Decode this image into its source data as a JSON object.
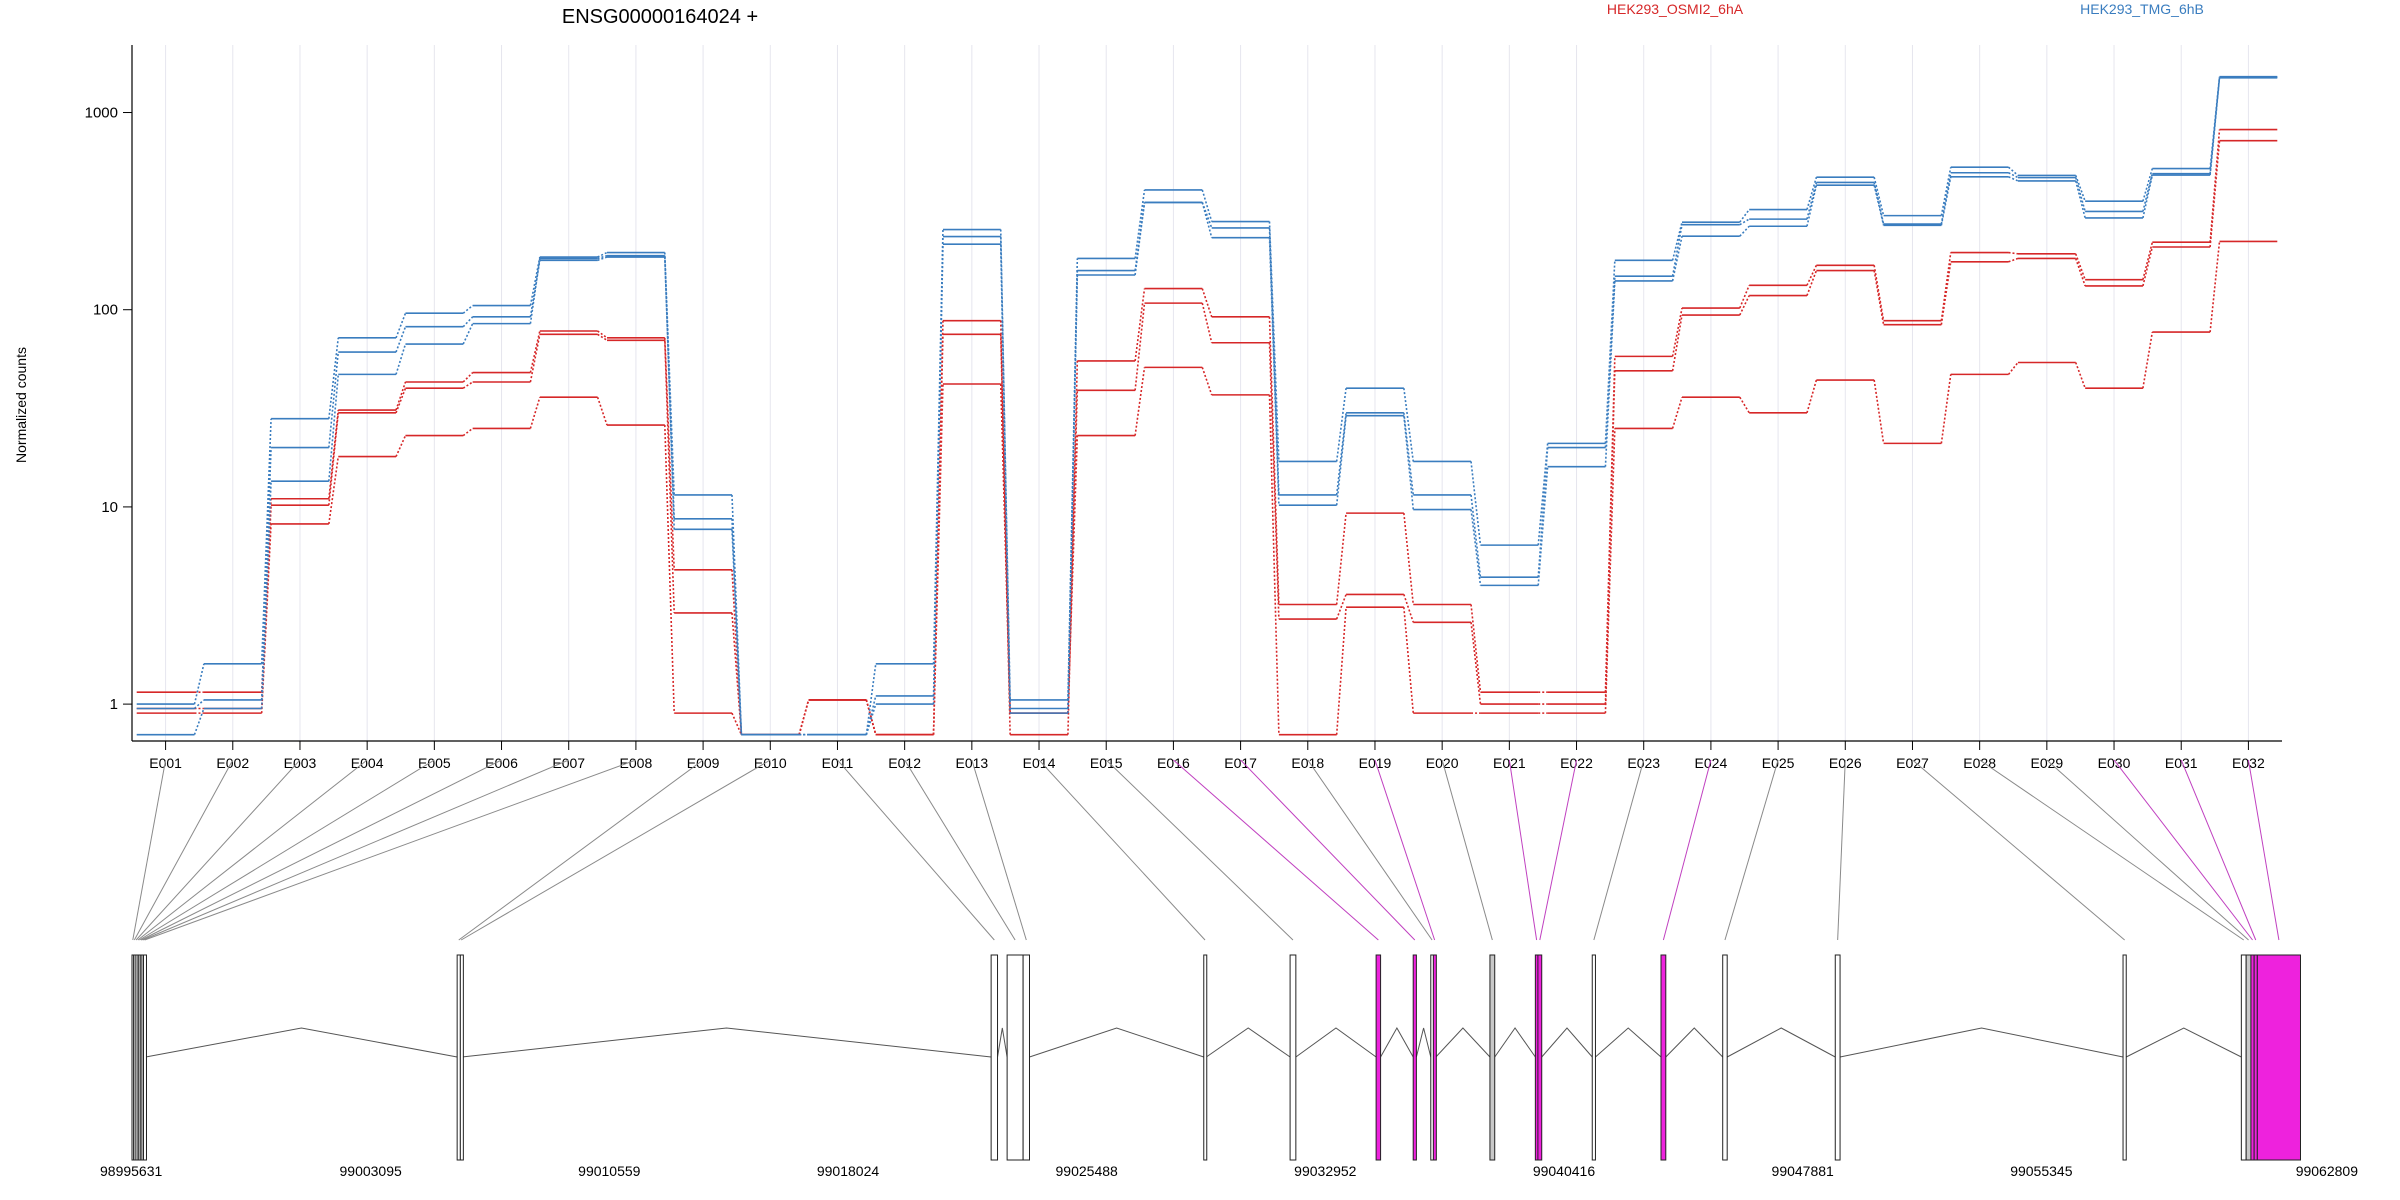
{
  "title": "ENSG00000164024 +",
  "legend": [
    {
      "label": "HEK293_OSMI2_6hA",
      "color": "#d62728"
    },
    {
      "label": "HEK293_TMG_6hB",
      "color": "#3a7dbf"
    }
  ],
  "colors": {
    "red": "#d62728",
    "blue": "#3a7dbf",
    "magenta": "#ee22dd",
    "grey_exon": "#c8c8c8",
    "link_grey": "#8a8a8a",
    "link_magenta": "#c040c0"
  },
  "chart_data": {
    "type": "line",
    "title": "ENSG00000164024 +",
    "ylabel": "Normalized counts",
    "yscale": "log",
    "ylim": [
      0.65,
      2200
    ],
    "yticks": [
      {
        "v": 1,
        "label": "1"
      },
      {
        "v": 10,
        "label": "10"
      },
      {
        "v": 100,
        "label": "100"
      },
      {
        "v": 1000,
        "label": "1000"
      }
    ],
    "categories": [
      "E001",
      "E002",
      "E003",
      "E004",
      "E005",
      "E006",
      "E007",
      "E008",
      "E009",
      "E010",
      "E011",
      "E012",
      "E013",
      "E014",
      "E015",
      "E016",
      "E017",
      "E018",
      "E019",
      "E020",
      "E021",
      "E022",
      "E023",
      "E024",
      "E025",
      "E026",
      "E027",
      "E028",
      "E029",
      "E030",
      "E031",
      "E032"
    ],
    "series": [
      {
        "group": "HEK293_OSMI2_6hA",
        "color": "#d62728",
        "values": [
          1.15,
          1.15,
          11,
          31,
          43,
          48,
          78,
          72,
          4.8,
          0.7,
          1.05,
          0.7,
          88,
          0.7,
          55,
          128,
          92,
          3.2,
          9.3,
          3.2,
          1.15,
          1.15,
          58,
          102,
          133,
          168,
          88,
          195,
          192,
          142,
          220,
          820
        ]
      },
      {
        "group": "HEK293_OSMI2_6hA",
        "color": "#d62728",
        "values": [
          0.95,
          0.95,
          10.2,
          30,
          40,
          43,
          75,
          70,
          2.9,
          0.7,
          1.05,
          0.7,
          75,
          0.9,
          39,
          108,
          68,
          2.7,
          3.6,
          2.6,
          1.0,
          1.0,
          49,
          94,
          118,
          158,
          84,
          175,
          182,
          132,
          208,
          720
        ]
      },
      {
        "group": "HEK293_OSMI2_6hA",
        "color": "#d62728",
        "values": [
          0.9,
          0.9,
          8.2,
          18,
          23,
          25,
          36,
          26,
          0.9,
          0.7,
          1.05,
          0.7,
          42,
          0.9,
          23,
          51,
          37,
          0.7,
          3.1,
          0.9,
          0.9,
          0.9,
          25,
          36,
          30,
          44,
          21,
          47,
          54,
          40,
          77,
          222
        ]
      },
      {
        "group": "HEK293_TMG_6hB",
        "color": "#3a7dbf",
        "values": [
          1.0,
          1.6,
          28,
          72,
          96,
          105,
          185,
          195,
          11.5,
          0.7,
          0.7,
          1.6,
          255,
          1.05,
          182,
          405,
          280,
          17,
          40,
          17,
          6.4,
          21,
          178,
          278,
          322,
          470,
          300,
          528,
          480,
          355,
          520,
          1520
        ]
      },
      {
        "group": "HEK293_TMG_6hB",
        "color": "#3a7dbf",
        "values": [
          0.95,
          1.05,
          20,
          61,
          82,
          92,
          178,
          185,
          8.7,
          0.7,
          0.7,
          1.1,
          235,
          0.95,
          158,
          350,
          260,
          11.5,
          30,
          11.5,
          4.4,
          20,
          148,
          270,
          288,
          442,
          272,
          495,
          468,
          315,
          490,
          1510
        ]
      },
      {
        "group": "HEK293_TMG_6hB",
        "color": "#3a7dbf",
        "values": [
          0.7,
          0.95,
          13.5,
          47,
          67,
          85,
          182,
          188,
          7.7,
          0.7,
          0.7,
          1.0,
          215,
          0.9,
          150,
          350,
          232,
          10.2,
          29,
          9.7,
          4.0,
          16,
          140,
          236,
          265,
          428,
          268,
          472,
          450,
          292,
          482,
          1500
        ]
      }
    ]
  },
  "gene_model": {
    "coord_labels": [
      "98995631",
      "99003095",
      "99010559",
      "99018024",
      "99025488",
      "99032952",
      "99040416",
      "99047881",
      "99055345",
      "99062809"
    ],
    "exons": [
      {
        "id": "E001",
        "start": 98995631,
        "end": 98995680,
        "fill": "#ffffff"
      },
      {
        "id": "E002",
        "start": 98995680,
        "end": 98995730,
        "fill": "#ffffff"
      },
      {
        "id": "E003",
        "start": 98995730,
        "end": 98995790,
        "fill": "#ffffff"
      },
      {
        "id": "E004",
        "start": 98995790,
        "end": 98995840,
        "fill": "#ffffff"
      },
      {
        "id": "E005",
        "start": 98995840,
        "end": 98995890,
        "fill": "#ffffff"
      },
      {
        "id": "E006",
        "start": 98995890,
        "end": 98995940,
        "fill": "#ffffff"
      },
      {
        "id": "E007",
        "start": 98995940,
        "end": 98995990,
        "fill": "#ffffff"
      },
      {
        "id": "E008",
        "start": 98995990,
        "end": 98996060,
        "fill": "#ffffff"
      },
      {
        "id": "E009",
        "start": 99005800,
        "end": 99005900,
        "fill": "#ffffff"
      },
      {
        "id": "E010",
        "start": 99005900,
        "end": 99005950,
        "fill": "#ffffff"
      },
      {
        "id": "E011",
        "start": 99022500,
        "end": 99022700,
        "fill": "#ffffff"
      },
      {
        "id": "E012",
        "start": 99023000,
        "end": 99023500,
        "fill": "#ffffff"
      },
      {
        "id": "E013",
        "start": 99023500,
        "end": 99023700,
        "fill": "#ffffff"
      },
      {
        "id": "E014",
        "start": 99029150,
        "end": 99029230,
        "fill": "#ffffff"
      },
      {
        "id": "E015",
        "start": 99031850,
        "end": 99032030,
        "fill": "#ffffff"
      },
      {
        "id": "E016",
        "start": 99034540,
        "end": 99034680,
        "fill": "#ee22dd"
      },
      {
        "id": "E017",
        "start": 99035700,
        "end": 99035800,
        "fill": "#ee22dd"
      },
      {
        "id": "E018",
        "start": 99036250,
        "end": 99036330,
        "fill": "#ffffff"
      },
      {
        "id": "E019",
        "start": 99036330,
        "end": 99036410,
        "fill": "#ee22dd"
      },
      {
        "id": "E020",
        "start": 99038100,
        "end": 99038250,
        "fill": "#c8c8c8"
      },
      {
        "id": "E021",
        "start": 99039520,
        "end": 99039600,
        "fill": "#ee22dd"
      },
      {
        "id": "E022",
        "start": 99039600,
        "end": 99039720,
        "fill": "#ee22dd"
      },
      {
        "id": "E023",
        "start": 99041300,
        "end": 99041400,
        "fill": "#ffffff"
      },
      {
        "id": "E024",
        "start": 99043450,
        "end": 99043600,
        "fill": "#ee22dd"
      },
      {
        "id": "E025",
        "start": 99045380,
        "end": 99045520,
        "fill": "#ffffff"
      },
      {
        "id": "E026",
        "start": 99048900,
        "end": 99049050,
        "fill": "#ffffff"
      },
      {
        "id": "E027",
        "start": 99057900,
        "end": 99058000,
        "fill": "#ffffff"
      },
      {
        "id": "E028",
        "start": 99061600,
        "end": 99061750,
        "fill": "#ffffff"
      },
      {
        "id": "E029",
        "start": 99061750,
        "end": 99061900,
        "fill": "#c8c8c8"
      },
      {
        "id": "E030",
        "start": 99061900,
        "end": 99062000,
        "fill": "#ee22dd"
      },
      {
        "id": "E031",
        "start": 99062000,
        "end": 99062100,
        "fill": "#ee22dd"
      },
      {
        "id": "E032",
        "start": 99062100,
        "end": 99063450,
        "fill": "#ee22dd"
      }
    ],
    "introns": [
      [
        98996060,
        99005800
      ],
      [
        99005950,
        99022500
      ],
      [
        99022700,
        99023000
      ],
      [
        99023700,
        99029150
      ],
      [
        99029230,
        99031850
      ],
      [
        99032030,
        99034540
      ],
      [
        99034680,
        99035700
      ],
      [
        99035800,
        99036250
      ],
      [
        99036410,
        99038100
      ],
      [
        99038250,
        99039520
      ],
      [
        99039720,
        99041300
      ],
      [
        99041400,
        99043450
      ],
      [
        99043600,
        99045380
      ],
      [
        99045520,
        99048900
      ],
      [
        99049050,
        99057900
      ],
      [
        99058000,
        99061600
      ]
    ]
  }
}
